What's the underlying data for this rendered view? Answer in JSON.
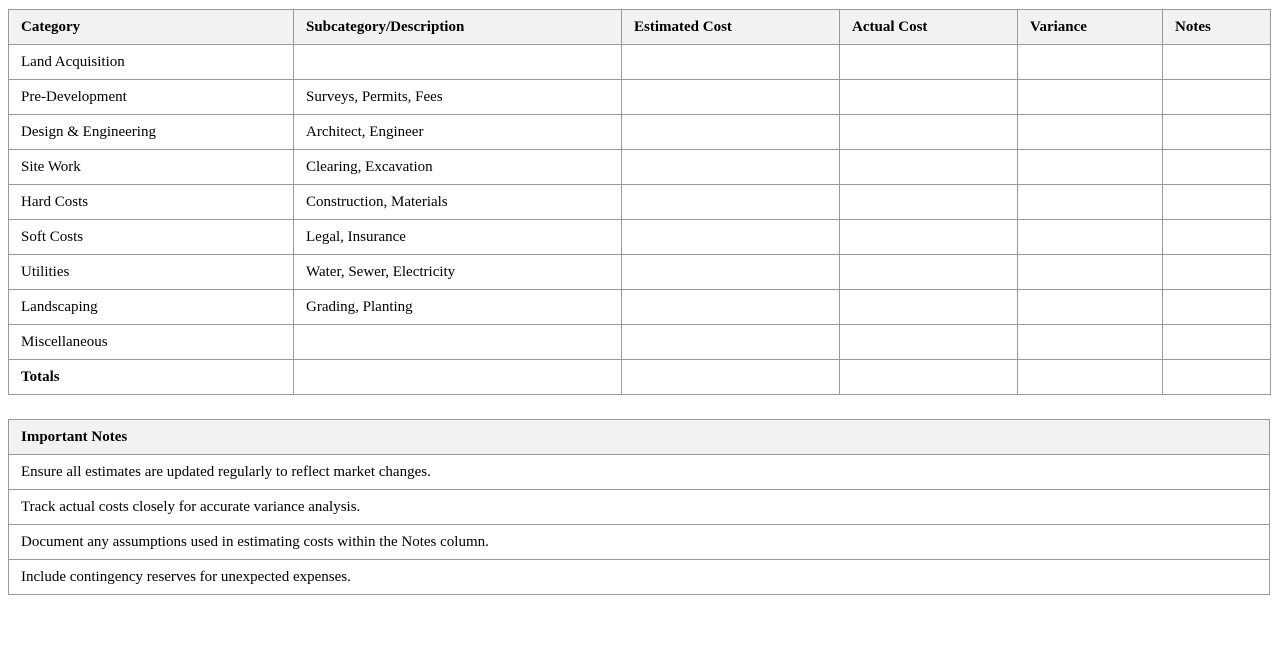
{
  "budget_table": {
    "headers": [
      "Category",
      "Subcategory/Description",
      "Estimated Cost",
      "Actual Cost",
      "Variance",
      "Notes"
    ],
    "rows": [
      [
        "Land Acquisition",
        "",
        "",
        "",
        "",
        ""
      ],
      [
        "Pre-Development",
        "Surveys, Permits, Fees",
        "",
        "",
        "",
        ""
      ],
      [
        "Design & Engineering",
        "Architect, Engineer",
        "",
        "",
        "",
        ""
      ],
      [
        "Site Work",
        "Clearing, Excavation",
        "",
        "",
        "",
        ""
      ],
      [
        "Hard Costs",
        "Construction, Materials",
        "",
        "",
        "",
        ""
      ],
      [
        "Soft Costs",
        "Legal, Insurance",
        "",
        "",
        "",
        ""
      ],
      [
        "Utilities",
        "Water, Sewer, Electricity",
        "",
        "",
        "",
        ""
      ],
      [
        "Landscaping",
        "Grading, Planting",
        "",
        "",
        "",
        ""
      ],
      [
        "Miscellaneous",
        "",
        "",
        "",
        "",
        ""
      ],
      [
        "Totals",
        "",
        "",
        "",
        "",
        ""
      ]
    ]
  },
  "notes_table": {
    "header": "Important Notes",
    "items": [
      "Ensure all estimates are updated regularly to reflect market changes.",
      "Track actual costs closely for accurate variance analysis.",
      "Document any assumptions used in estimating costs within the Notes column.",
      "Include contingency reserves for unexpected expenses."
    ]
  }
}
